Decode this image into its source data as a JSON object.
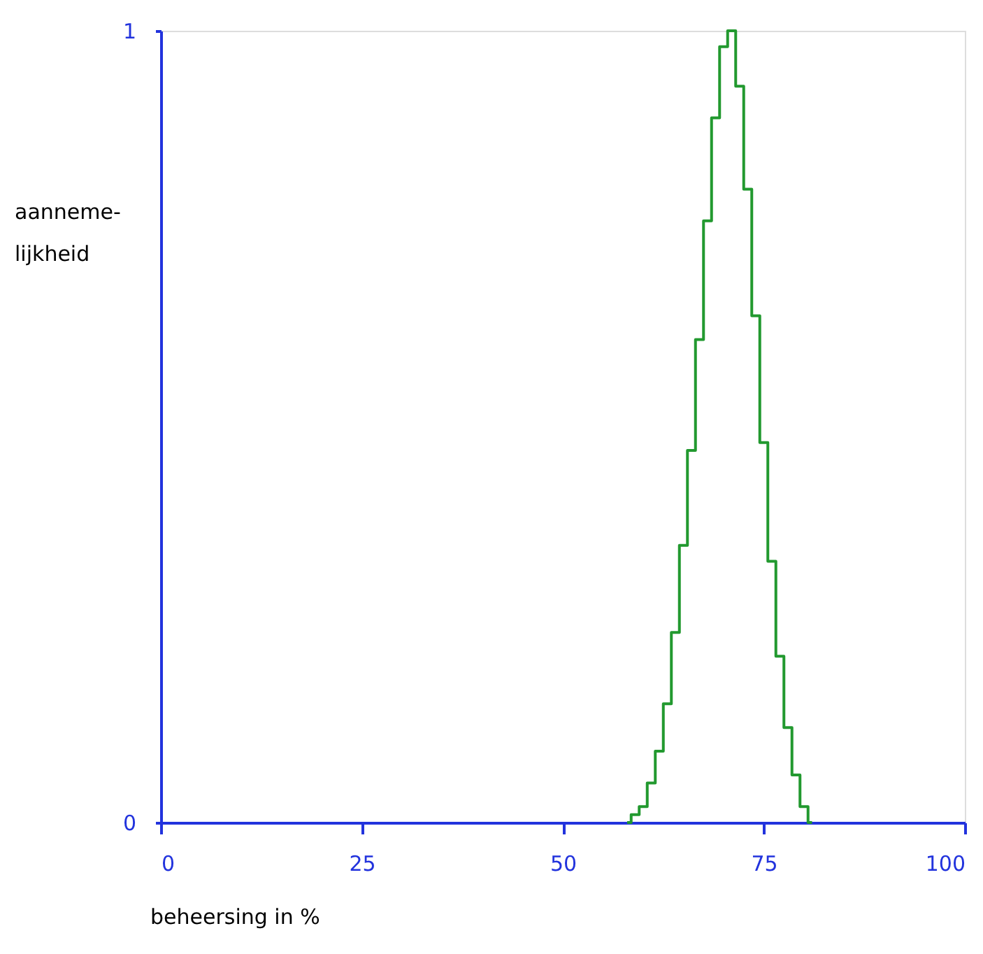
{
  "chart_data": {
    "type": "step",
    "xlabel": "beheersing in %",
    "ylabel": "aanneme-\nlijkheid",
    "xlim": [
      0,
      100
    ],
    "xticks": [
      0,
      25,
      50,
      75,
      100
    ],
    "ylim": [
      0,
      1
    ],
    "yticks": [
      0,
      1
    ],
    "grid": false,
    "x": [
      58,
      59,
      60,
      61,
      62,
      63,
      64,
      65,
      66,
      67,
      68,
      69,
      70,
      71,
      72,
      73,
      74,
      75,
      76,
      77,
      78,
      79,
      80,
      81
    ],
    "series": [
      {
        "color": "#22992f",
        "values": [
          0,
          0.01,
          0.02,
          0.05,
          0.09,
          0.15,
          0.24,
          0.35,
          0.47,
          0.61,
          0.76,
          0.89,
          0.98,
          1.0,
          0.93,
          0.8,
          0.64,
          0.48,
          0.33,
          0.21,
          0.12,
          0.06,
          0.02,
          0
        ]
      }
    ]
  }
}
